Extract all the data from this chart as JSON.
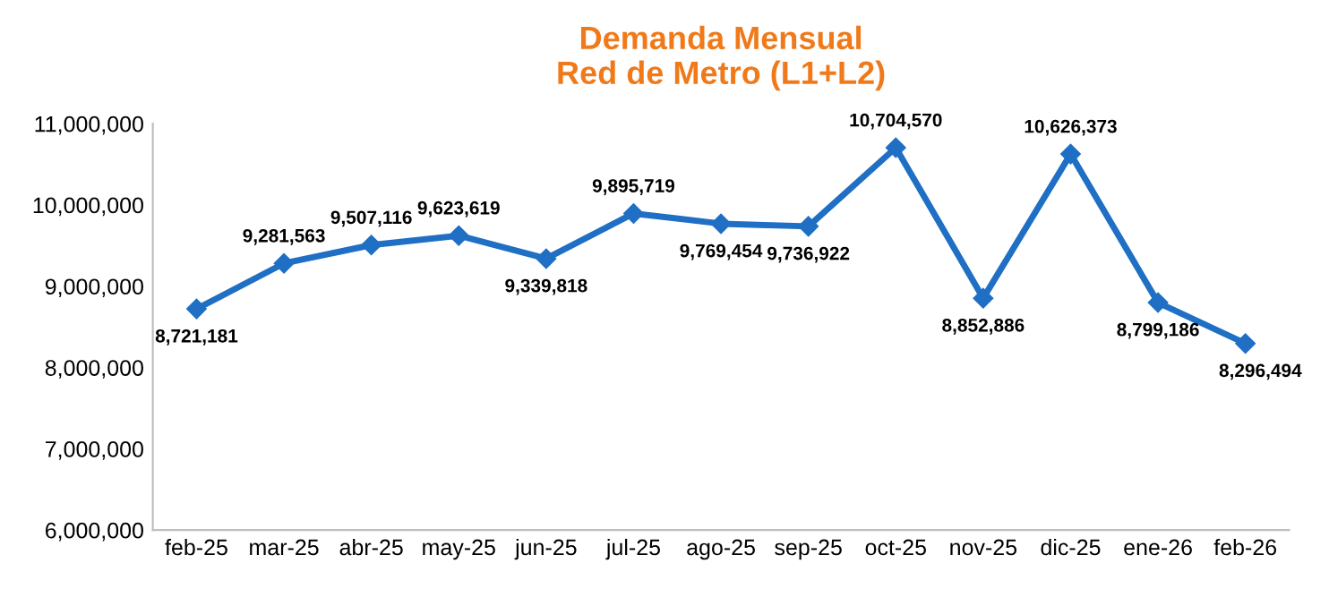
{
  "chart_data": {
    "type": "line",
    "title": "Demanda Mensual\nRed de Metro (L1+L2)",
    "categories": [
      "feb-25",
      "mar-25",
      "abr-25",
      "may-25",
      "jun-25",
      "jul-25",
      "ago-25",
      "sep-25",
      "oct-25",
      "nov-25",
      "dic-25",
      "ene-26",
      "feb-26"
    ],
    "series": [
      {
        "color": "#1f6fc4",
        "values": [
          8721181,
          9281563,
          9507116,
          9623619,
          9339818,
          9895719,
          9769454,
          9736922,
          10704570,
          8852886,
          10626373,
          8799186,
          8296494
        ]
      }
    ],
    "ylim": [
      6000000,
      11000000
    ],
    "yticks": [
      {
        "value": 6000000,
        "label": "6,000,000"
      },
      {
        "value": 7000000,
        "label": "7,000,000"
      },
      {
        "value": 8000000,
        "label": "8,000,000"
      },
      {
        "value": 9000000,
        "label": "9,000,000"
      },
      {
        "value": 10000000,
        "label": "10,000,000"
      },
      {
        "value": 11000000,
        "label": "11,000,000"
      }
    ],
    "value_labels": [
      "8,721,181",
      "9,281,563",
      "9,507,116",
      "9,623,619",
      "9,339,818",
      "9,895,719",
      "9,769,454",
      "9,736,922",
      "10,704,570",
      "8,852,886",
      "10,626,373",
      "8,799,186",
      "8,296,494"
    ],
    "marker": "diamond",
    "line_style": "solid",
    "grid": false,
    "legend": false
  }
}
